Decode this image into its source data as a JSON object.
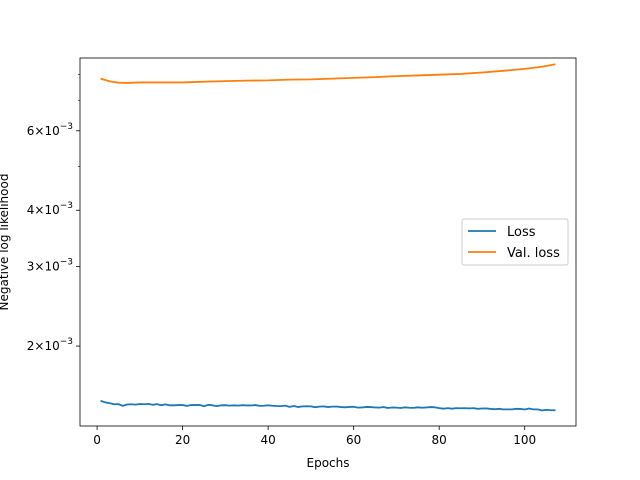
{
  "chart_data": {
    "type": "line",
    "title": "",
    "xlabel": "Epochs",
    "ylabel": "Negative log likelihood",
    "xlim": [
      -4,
      112
    ],
    "ylim": [
      0.00133,
      0.0087
    ],
    "yscale": "log",
    "grid": false,
    "legend_position": "right",
    "x_ticks": [
      0,
      20,
      40,
      60,
      80,
      100
    ],
    "x_tick_labels": [
      "0",
      "20",
      "40",
      "60",
      "80",
      "100"
    ],
    "y_major_ticks": [
      {
        "value": 0.002,
        "mantissa": "2",
        "base": "10",
        "exponent": "−3"
      },
      {
        "value": 0.003,
        "mantissa": "3",
        "base": "10",
        "exponent": "−3"
      },
      {
        "value": 0.004,
        "mantissa": "4",
        "base": "10",
        "exponent": "−3"
      },
      {
        "value": 0.006,
        "mantissa": "6",
        "base": "10",
        "exponent": "−3"
      }
    ],
    "y_minor_ticks": [
      0.005,
      0.007,
      0.008
    ],
    "series": [
      {
        "name": "Loss",
        "color": "#1f77b4",
        "x": [
          1,
          2,
          3,
          4,
          5,
          6,
          7,
          8,
          9,
          10,
          11,
          12,
          13,
          14,
          15,
          16,
          17,
          18,
          19,
          20,
          21,
          22,
          23,
          24,
          25,
          26,
          27,
          28,
          29,
          30,
          31,
          32,
          33,
          34,
          35,
          36,
          37,
          38,
          39,
          40,
          41,
          42,
          43,
          44,
          45,
          46,
          47,
          48,
          49,
          50,
          51,
          52,
          53,
          54,
          55,
          56,
          57,
          58,
          59,
          60,
          61,
          62,
          63,
          64,
          65,
          66,
          67,
          68,
          69,
          70,
          71,
          72,
          73,
          74,
          75,
          76,
          77,
          78,
          79,
          80,
          81,
          82,
          83,
          84,
          85,
          86,
          87,
          88,
          89,
          90,
          91,
          92,
          93,
          94,
          95,
          96,
          97,
          98,
          99,
          100,
          101,
          102,
          103,
          104,
          105,
          106,
          107
        ],
        "values": [
          0.00151,
          0.0015,
          0.001494,
          0.001486,
          0.001487,
          0.001474,
          0.001484,
          0.001486,
          0.001483,
          0.001488,
          0.001486,
          0.001489,
          0.001482,
          0.001487,
          0.001479,
          0.001485,
          0.001478,
          0.001478,
          0.00148,
          0.00148,
          0.001474,
          0.00148,
          0.00148,
          0.001481,
          0.001471,
          0.001482,
          0.001478,
          0.001472,
          0.001478,
          0.001479,
          0.001476,
          0.001478,
          0.001476,
          0.001479,
          0.001477,
          0.001477,
          0.00148,
          0.001474,
          0.001475,
          0.001478,
          0.001475,
          0.001473,
          0.001472,
          0.001476,
          0.001466,
          0.001473,
          0.001465,
          0.00147,
          0.001471,
          0.00147,
          0.001464,
          0.001468,
          0.00147,
          0.001465,
          0.001468,
          0.001469,
          0.001465,
          0.001463,
          0.001466,
          0.001467,
          0.001461,
          0.001462,
          0.001466,
          0.001465,
          0.001462,
          0.001461,
          0.001465,
          0.001458,
          0.001462,
          0.001461,
          0.001458,
          0.001463,
          0.00146,
          0.001459,
          0.001463,
          0.00146,
          0.001462,
          0.001465,
          0.001463,
          0.001457,
          0.001453,
          0.001457,
          0.001453,
          0.001457,
          0.001456,
          0.001457,
          0.001455,
          0.001457,
          0.001452,
          0.001454,
          0.001455,
          0.001451,
          0.001449,
          0.001452,
          0.001448,
          0.001448,
          0.001448,
          0.001452,
          0.001451,
          0.001447,
          0.001454,
          0.001448,
          0.001448,
          0.00144,
          0.001444,
          0.001442,
          0.001441
        ]
      },
      {
        "name": "Val. loss",
        "color": "#ff7f0e",
        "x": [
          1,
          3,
          5,
          7,
          10,
          15,
          20,
          25,
          30,
          35,
          40,
          45,
          50,
          55,
          60,
          65,
          70,
          75,
          80,
          85,
          90,
          95,
          100,
          104,
          107
        ],
        "values": [
          0.00782,
          0.00772,
          0.00767,
          0.00766,
          0.00768,
          0.00768,
          0.00768,
          0.00771,
          0.00773,
          0.00775,
          0.00776,
          0.00779,
          0.0078,
          0.00783,
          0.00786,
          0.00789,
          0.00793,
          0.00796,
          0.00799,
          0.00802,
          0.00808,
          0.00815,
          0.00823,
          0.00832,
          0.00842
        ]
      }
    ],
    "legend": [
      {
        "label": "Loss",
        "color": "#1f77b4"
      },
      {
        "label": "Val. loss",
        "color": "#ff7f0e"
      }
    ]
  }
}
